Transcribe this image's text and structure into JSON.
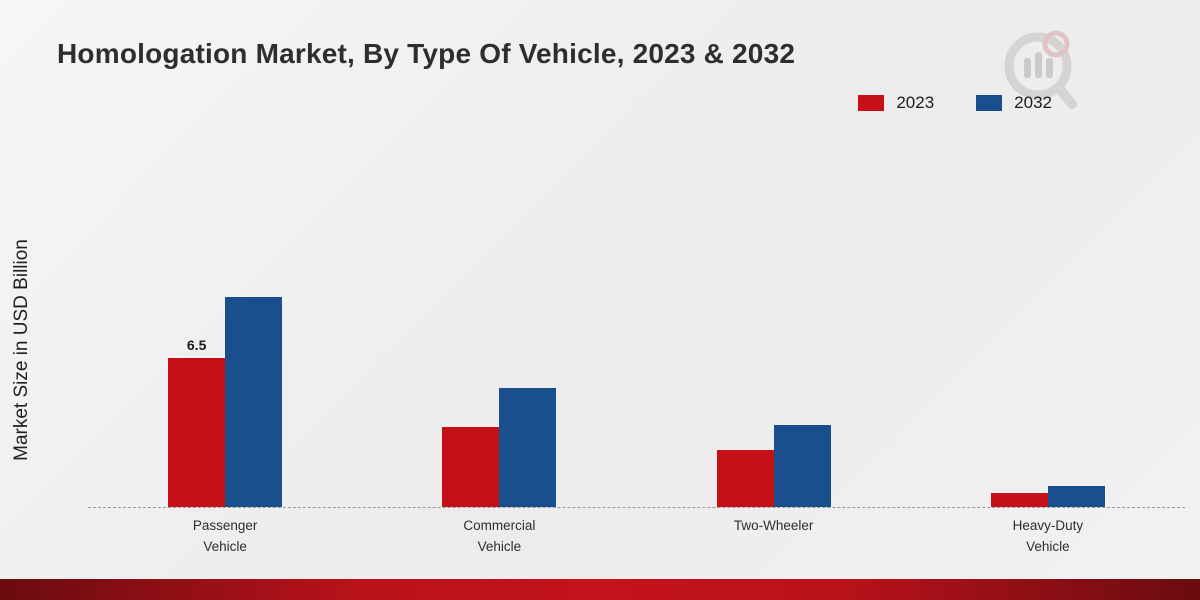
{
  "page": {
    "title": "Homologation Market, By Type Of Vehicle, 2023 & 2032"
  },
  "legend": {
    "items": [
      {
        "label": "2023",
        "color": "#c51017"
      },
      {
        "label": "2032",
        "color": "#1a4f8e"
      }
    ]
  },
  "chart_data": {
    "type": "bar",
    "title": "Homologation Market, By Type Of Vehicle, 2023 & 2032",
    "categories": [
      "Passenger\nVehicle",
      "Commercial\nVehicle",
      "Two-Wheeler",
      "Heavy-Duty\nVehicle"
    ],
    "series": [
      {
        "name": "2023",
        "color": "#c51017",
        "values": [
          6.5,
          3.5,
          2.5,
          0.6
        ]
      },
      {
        "name": "2032",
        "color": "#1a4f8e",
        "values": [
          9.2,
          5.2,
          3.6,
          0.9
        ]
      }
    ],
    "xlabel": "",
    "ylabel": "Market Size in USD Billion",
    "ylim": [
      0,
      10.5
    ],
    "grid": false,
    "legend_position": "top-right",
    "baseline_style": "dashed",
    "annotations": [
      {
        "category_index": 0,
        "series": "2023",
        "text": "6.5"
      }
    ]
  }
}
